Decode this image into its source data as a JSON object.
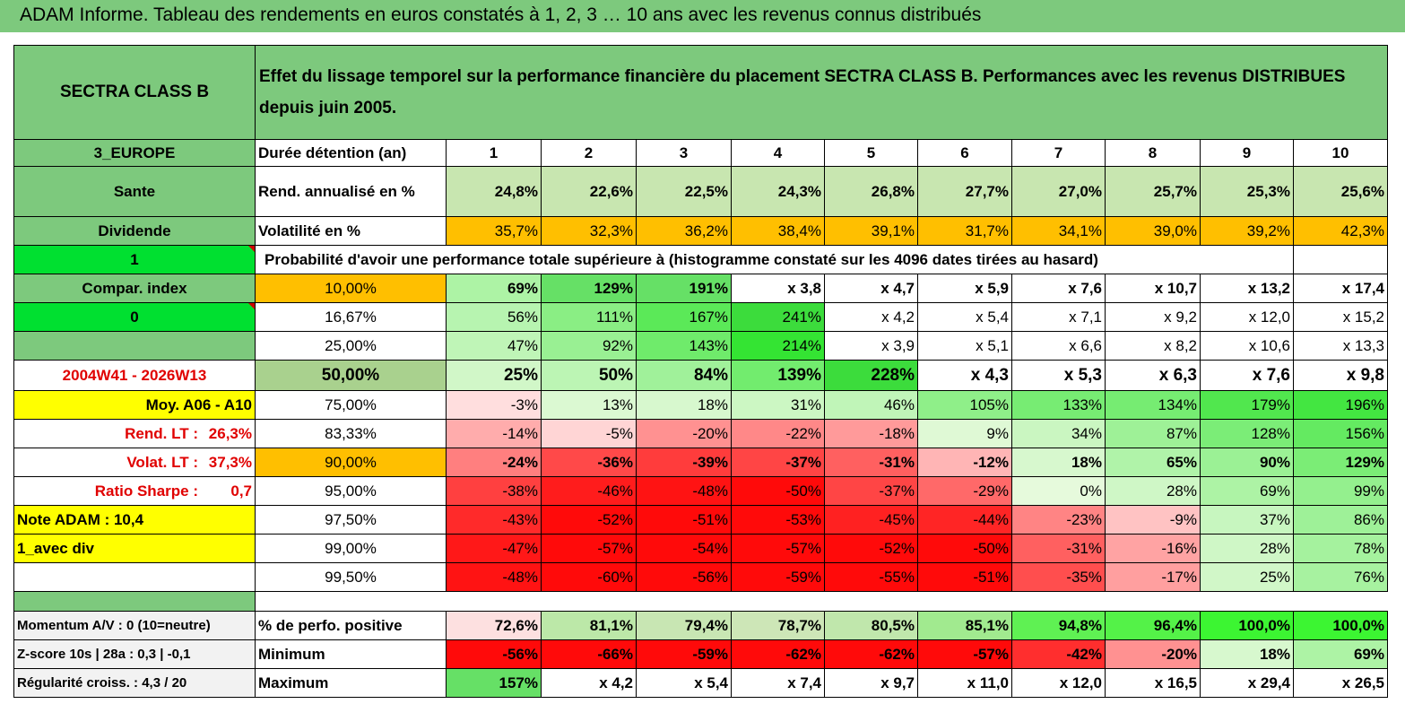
{
  "title": "ADAM Informe. Tableau des rendements en euros constatés à 1, 2, 3 … 10 ans avec les revenus connus distribués",
  "fund_name": "SECTRA CLASS B",
  "header_text": "Effet du lissage temporel sur la performance financière du placement SECTRA CLASS B. Performances avec les revenus DISTRIBUES depuis juin 2005.",
  "side": {
    "region": "3_EUROPE",
    "sector": "Sante",
    "income": "Dividende",
    "flag1": "1",
    "compar_index": "Compar. index",
    "flag2": "0",
    "period": "2004W41 - 2026W13",
    "moy": "Moy. A06 - A10",
    "rend_lt_label": "Rend. LT :",
    "rend_lt_value": "26,3%",
    "volat_lt_label": "Volat. LT :",
    "volat_lt_value": "37,3%",
    "sharpe_label": "Ratio Sharpe :",
    "sharpe_value": "0,7",
    "note": "Note ADAM : 10,4",
    "div": "1_avec div"
  },
  "rows_labels": {
    "duree": "Durée détention (an)",
    "rend": "Rend. annualisé en %",
    "vol": "Volatilité en %",
    "proba": "Probabilité d'avoir une performance totale supérieure à (histogramme constaté sur les 4096 dates tirées au hasard)"
  },
  "years": [
    "1",
    "2",
    "3",
    "4",
    "5",
    "6",
    "7",
    "8",
    "9",
    "10"
  ],
  "rend": [
    "24,8%",
    "22,6%",
    "22,5%",
    "24,3%",
    "26,8%",
    "27,7%",
    "27,0%",
    "25,7%",
    "25,3%",
    "25,6%"
  ],
  "vol": [
    "35,7%",
    "32,3%",
    "36,2%",
    "38,4%",
    "39,1%",
    "31,7%",
    "34,1%",
    "39,0%",
    "39,2%",
    "42,3%"
  ],
  "percentile_rows": [
    {
      "p": "10,00%",
      "vals": [
        "69%",
        "129%",
        "191%",
        "x 3,8",
        "x 4,7",
        "x 5,9",
        "x 7,6",
        "x 10,7",
        "x 13,2",
        "x 17,4"
      ]
    },
    {
      "p": "16,67%",
      "vals": [
        "56%",
        "111%",
        "167%",
        "241%",
        "x 4,2",
        "x 5,4",
        "x 7,1",
        "x 9,2",
        "x 12,0",
        "x 15,2"
      ]
    },
    {
      "p": "25,00%",
      "vals": [
        "47%",
        "92%",
        "143%",
        "214%",
        "x 3,9",
        "x 5,1",
        "x 6,6",
        "x 8,2",
        "x 10,6",
        "x 13,3"
      ]
    },
    {
      "p": "50,00%",
      "vals": [
        "25%",
        "50%",
        "84%",
        "139%",
        "228%",
        "x 4,3",
        "x 5,3",
        "x 6,3",
        "x 7,6",
        "x 9,8"
      ]
    },
    {
      "p": "75,00%",
      "vals": [
        "-3%",
        "13%",
        "18%",
        "31%",
        "46%",
        "105%",
        "133%",
        "134%",
        "179%",
        "196%"
      ]
    },
    {
      "p": "83,33%",
      "vals": [
        "-14%",
        "-5%",
        "-20%",
        "-22%",
        "-18%",
        "9%",
        "34%",
        "87%",
        "128%",
        "156%"
      ]
    },
    {
      "p": "90,00%",
      "vals": [
        "-24%",
        "-36%",
        "-39%",
        "-37%",
        "-31%",
        "-12%",
        "18%",
        "65%",
        "90%",
        "129%"
      ]
    },
    {
      "p": "95,00%",
      "vals": [
        "-38%",
        "-46%",
        "-48%",
        "-50%",
        "-37%",
        "-29%",
        "0%",
        "28%",
        "69%",
        "99%"
      ]
    },
    {
      "p": "97,50%",
      "vals": [
        "-43%",
        "-52%",
        "-51%",
        "-53%",
        "-45%",
        "-44%",
        "-23%",
        "-9%",
        "37%",
        "86%"
      ]
    },
    {
      "p": "99,00%",
      "vals": [
        "-47%",
        "-57%",
        "-54%",
        "-57%",
        "-52%",
        "-50%",
        "-31%",
        "-16%",
        "28%",
        "78%"
      ]
    },
    {
      "p": "99,50%",
      "vals": [
        "-48%",
        "-60%",
        "-56%",
        "-59%",
        "-55%",
        "-51%",
        "-35%",
        "-17%",
        "25%",
        "76%"
      ]
    }
  ],
  "bottom_rows": [
    {
      "side": "Momentum A/V : 0 (10=neutre)",
      "label": "% de perfo. positive",
      "vals": [
        "72,6%",
        "81,1%",
        "79,4%",
        "78,7%",
        "80,5%",
        "85,1%",
        "94,8%",
        "96,4%",
        "100,0%",
        "100,0%"
      ]
    },
    {
      "side": "Z-score 10s | 28a : 0,3  | -0,1",
      "label": "Minimum",
      "vals": [
        "-56%",
        "-66%",
        "-59%",
        "-62%",
        "-62%",
        "-57%",
        "-42%",
        "-20%",
        "18%",
        "69%"
      ]
    },
    {
      "side": "Régularité croiss. : 4,3 / 20",
      "label": "Maximum",
      "vals": [
        "157%",
        "x 4,2",
        "x 5,4",
        "x 7,4",
        "x 9,7",
        "x 11,0",
        "x 12,0",
        "x 16,5",
        "x 29,4",
        "x 26,5"
      ]
    }
  ],
  "colors": {
    "green_header": "#7dc97d",
    "bright_green": "#00e030",
    "orange": "#ffbf00",
    "yellow": "#ffff00",
    "red_text": "#e00000"
  }
}
